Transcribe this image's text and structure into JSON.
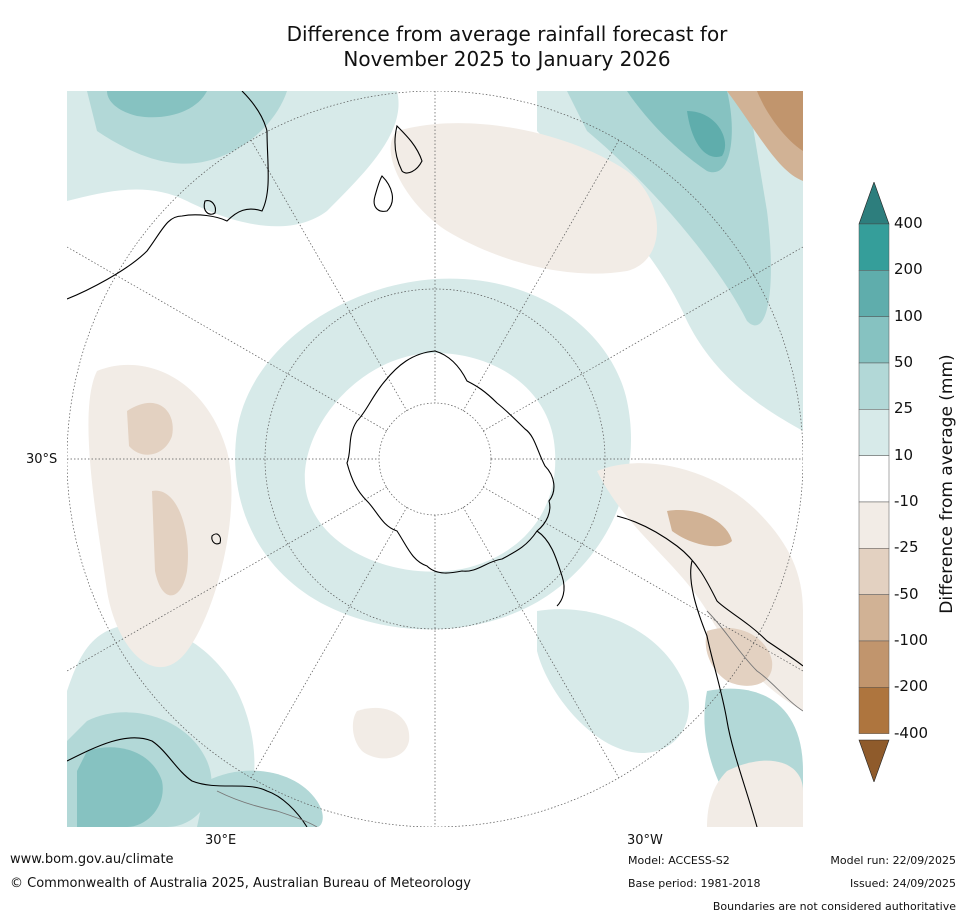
{
  "title": {
    "line1": "Difference from average rainfall forecast for",
    "line2": "November 2025 to January 2026"
  },
  "map": {
    "projection": "south-polar stereographic",
    "graticule_labels": {
      "lat_left": "30°S",
      "lon_bottom_left": "30°E",
      "lon_bottom_right": "30°W"
    }
  },
  "legend": {
    "title": "Difference from average (mm)",
    "ticks": [
      "400",
      "200",
      "100",
      "50",
      "25",
      "10",
      "-10",
      "-25",
      "-50",
      "-100",
      "-200",
      "-400"
    ],
    "colors": [
      "#2d7e7d",
      "#359e9a",
      "#5fadac",
      "#86c2c1",
      "#b2d8d7",
      "#d7eae9",
      "#ffffff",
      "#f2ece6",
      "#e3d1c1",
      "#d1b295",
      "#c1956d",
      "#ae753e",
      "#8f5b2b"
    ]
  },
  "footer": {
    "url": "www.bom.gov.au/climate",
    "copyright": "© Commonwealth of Australia 2025, Australian Bureau of Meteorology",
    "model": "Model: ACCESS-S2",
    "base_period": "Base period: 1981-2018",
    "model_run": "Model run: 22/09/2025",
    "issued": "Issued: 24/09/2025",
    "disclaimer": "Boundaries are not considered authoritative"
  }
}
